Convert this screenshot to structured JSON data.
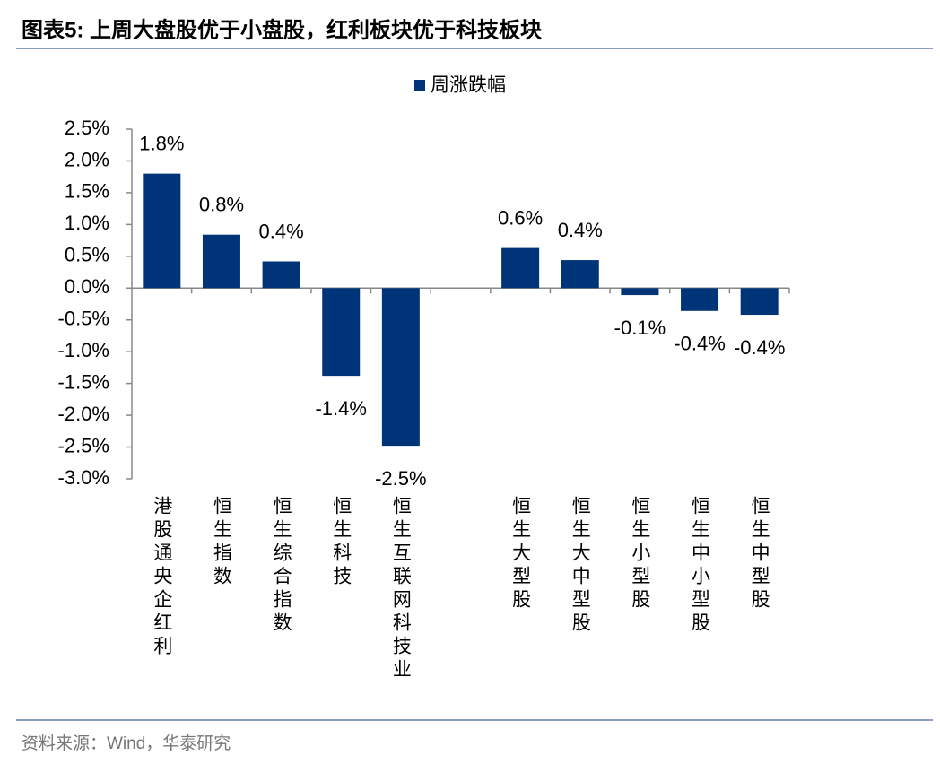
{
  "chart_data": {
    "type": "bar",
    "title": "图表5:  上周大盘股优于小盘股，红利板块优于科技板块",
    "source": "资料来源：Wind，华泰研究",
    "categories": [
      "港股通央企红利",
      "恒生指数",
      "恒生综合指数",
      "恒生科技",
      "恒生互联网科技业",
      null,
      "恒生大型股",
      "恒生大中型股",
      "恒生小型股",
      "恒生中小型股",
      "恒生中型股"
    ],
    "series": [
      {
        "name": "周涨跌幅",
        "color": "#003478",
        "values": [
          1.8,
          0.84,
          0.42,
          -1.38,
          -2.48,
          null,
          0.63,
          0.44,
          -0.11,
          -0.36,
          -0.42
        ],
        "value_labels": [
          "1.8%",
          "0.8%",
          "0.4%",
          "-1.4%",
          "-2.5%",
          null,
          "0.6%",
          "0.4%",
          "-0.1%",
          "-0.4%",
          "-0.4%"
        ]
      }
    ],
    "ylim": [
      -3.0,
      2.5
    ],
    "yticks": [
      {
        "value": -3.0,
        "label": "-3.0%"
      },
      {
        "value": -2.5,
        "label": "-2.5%"
      },
      {
        "value": -2.0,
        "label": "-2.0%"
      },
      {
        "value": -1.5,
        "label": "-1.5%"
      },
      {
        "value": -1.0,
        "label": "-1.0%"
      },
      {
        "value": -0.5,
        "label": "-0.5%"
      },
      {
        "value": 0.0,
        "label": "0.0%"
      },
      {
        "value": 0.5,
        "label": "0.5%"
      },
      {
        "value": 1.0,
        "label": "1.0%"
      },
      {
        "value": 1.5,
        "label": "1.5%"
      },
      {
        "value": 2.0,
        "label": "2.0%"
      },
      {
        "value": 2.5,
        "label": "2.5%"
      }
    ],
    "legend": "top"
  }
}
